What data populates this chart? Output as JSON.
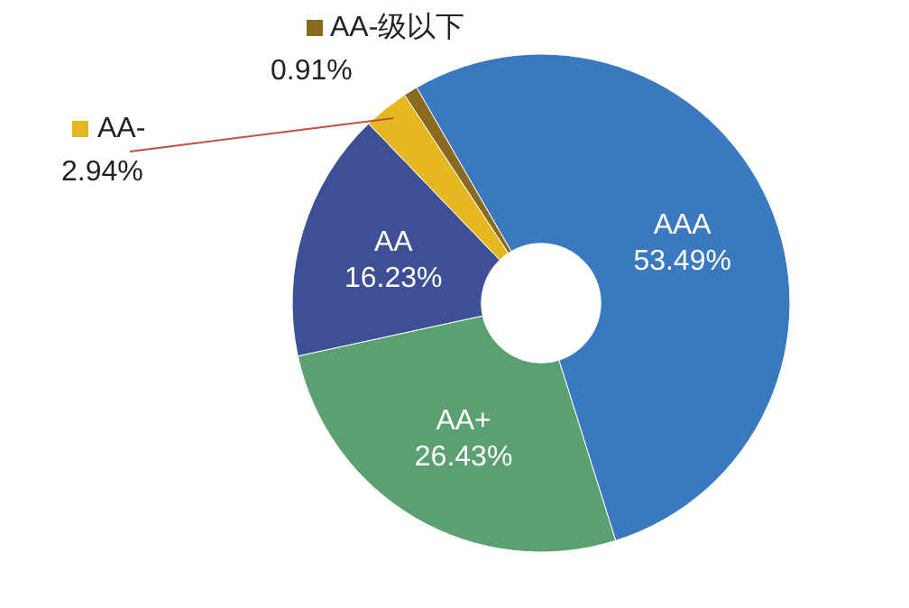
{
  "chart_data": {
    "type": "donut",
    "categories": [
      "AAA",
      "AA+",
      "AA",
      "AA-",
      "AA-级以下"
    ],
    "values": [
      53.49,
      26.43,
      16.23,
      2.94,
      0.91
    ],
    "value_labels": [
      "53.49%",
      "26.43%",
      "16.23%",
      "2.94%",
      "0.91%"
    ],
    "legend": "top left",
    "colors": [
      "#3a78c0",
      "#5aa070",
      "#3f4f97",
      "#e6b820",
      "#8a6a20"
    ]
  }
}
